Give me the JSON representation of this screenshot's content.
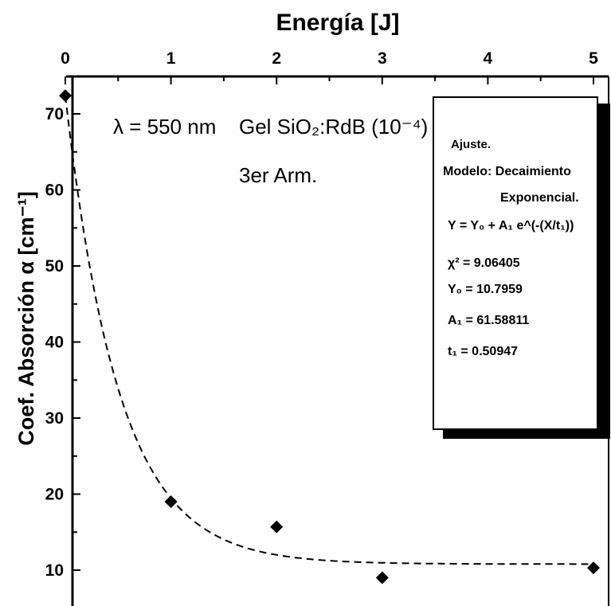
{
  "chart_data": {
    "type": "scatter",
    "title": "",
    "xlabel": "Energía [J]",
    "ylabel": "Coef. Absorción α [cm⁻¹]",
    "xlim": [
      0,
      5
    ],
    "ylim": [
      5,
      75
    ],
    "x_ticks": [
      "0",
      "1",
      "2",
      "3",
      "4",
      "5"
    ],
    "y_ticks": [
      "10",
      "20",
      "30",
      "40",
      "50",
      "60",
      "70"
    ],
    "x_axis_position": "top",
    "grid": false,
    "series": [
      {
        "type": "scatter",
        "marker": "diamond",
        "x": [
          0,
          1,
          2,
          3,
          5
        ],
        "y": [
          72.4,
          19.0,
          15.7,
          9.0,
          10.3
        ]
      },
      {
        "type": "line",
        "style": "dashed",
        "model": "exponential_decay",
        "y0": 10.7959,
        "a1": 61.58811,
        "t1": 0.50947
      }
    ],
    "annotations": {
      "wavelength": "λ = 550 nm",
      "sample": "Gel SiO₂:RdB (10⁻⁴)",
      "treatment": "3er Arm."
    },
    "fit_box": {
      "lines": [
        "Ajuste.",
        "Modelo: Decaimiento",
        "Exponencial.",
        "Y = Y₀ + A₁ e^(-(X/t₁))",
        "χ² = 9.06405",
        "Y₀ = 10.7959",
        "A₁ = 61.58811",
        "t₁ = 0.50947"
      ]
    }
  }
}
